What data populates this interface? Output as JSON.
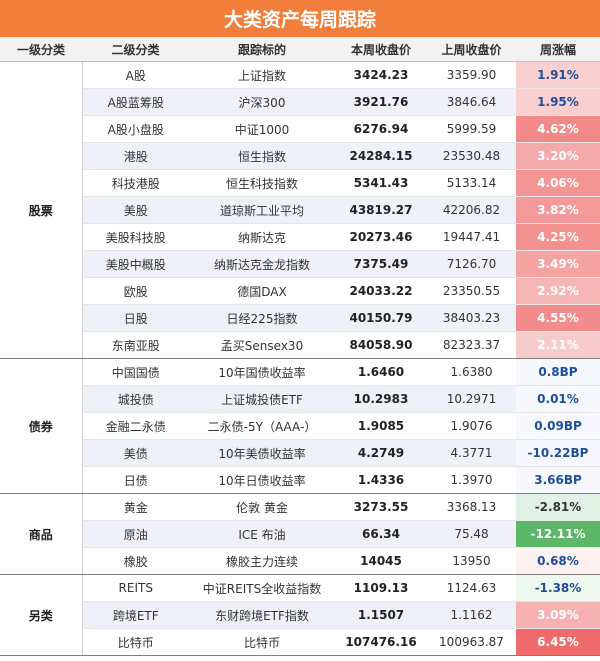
{
  "title": "大类资产每周跟踪",
  "headers": [
    "一级分类",
    "二级分类",
    "跟踪标的",
    "本周收盘价",
    "上周收盘价",
    "周涨幅"
  ],
  "groups": [
    {
      "name": "股票",
      "rows": [
        {
          "sub": "A股",
          "idx": "上证指数",
          "cur": "3424.23",
          "prev": "3359.90",
          "chg": "1.91%",
          "bg": "#f9cfcf",
          "fg": "#1f4e9a"
        },
        {
          "sub": "A股蓝筹股",
          "idx": "沪深300",
          "cur": "3921.76",
          "prev": "3846.64",
          "chg": "1.95%",
          "bg": "#f9cfcf",
          "fg": "#1f4e9a"
        },
        {
          "sub": "A股小盘股",
          "idx": "中证1000",
          "cur": "6276.94",
          "prev": "5999.59",
          "chg": "4.62%",
          "bg": "#f28a8a",
          "fg": "#ffffff"
        },
        {
          "sub": "港股",
          "idx": "恒生指数",
          "cur": "24284.15",
          "prev": "23530.48",
          "chg": "3.20%",
          "bg": "#f4aaaa",
          "fg": "#ffffff"
        },
        {
          "sub": "科技港股",
          "idx": "恒生科技指数",
          "cur": "5341.43",
          "prev": "5133.14",
          "chg": "4.06%",
          "bg": "#f39595",
          "fg": "#ffffff"
        },
        {
          "sub": "美股",
          "idx": "道琼斯工业平均",
          "cur": "43819.27",
          "prev": "42206.82",
          "chg": "3.82%",
          "bg": "#f39999",
          "fg": "#ffffff"
        },
        {
          "sub": "美股科技股",
          "idx": "纳斯达克",
          "cur": "20273.46",
          "prev": "19447.41",
          "chg": "4.25%",
          "bg": "#f39191",
          "fg": "#ffffff"
        },
        {
          "sub": "美股中概股",
          "idx": "纳斯达克金龙指数",
          "cur": "7375.49",
          "prev": "7126.70",
          "chg": "3.49%",
          "bg": "#f4a2a2",
          "fg": "#ffffff"
        },
        {
          "sub": "欧股",
          "idx": "德国DAX",
          "cur": "24033.22",
          "prev": "23350.55",
          "chg": "2.92%",
          "bg": "#f6b6b6",
          "fg": "#ffffff"
        },
        {
          "sub": "日股",
          "idx": "日经225指数",
          "cur": "40150.79",
          "prev": "38403.23",
          "chg": "4.55%",
          "bg": "#f28b8b",
          "fg": "#ffffff"
        },
        {
          "sub": "东南亚股",
          "idx": "孟买Sensex30",
          "cur": "84058.90",
          "prev": "82323.37",
          "chg": "2.11%",
          "bg": "#f8cbcb",
          "fg": "#ffffff"
        }
      ]
    },
    {
      "name": "债券",
      "rows": [
        {
          "sub": "中国国债",
          "idx": "10年国债收益率",
          "cur": "1.6460",
          "prev": "1.6380",
          "chg": "0.8BP",
          "bg": "#f6f8fd",
          "fg": "#1f4e9a"
        },
        {
          "sub": "城投债",
          "idx": "上证城投债ETF",
          "cur": "10.2983",
          "prev": "10.2971",
          "chg": "0.01%",
          "bg": "#f6f8fd",
          "fg": "#1f4e9a"
        },
        {
          "sub": "金融二永债",
          "idx": "二永债-5Y（AAA-）",
          "cur": "1.9085",
          "prev": "1.9076",
          "chg": "0.09BP",
          "bg": "#f6f8fd",
          "fg": "#1f4e9a"
        },
        {
          "sub": "美债",
          "idx": "10年美债收益率",
          "cur": "4.2749",
          "prev": "4.3771",
          "chg": "-10.22BP",
          "bg": "#f6f8fd",
          "fg": "#1f4e9a"
        },
        {
          "sub": "日债",
          "idx": "10年日债收益率",
          "cur": "1.4336",
          "prev": "1.3970",
          "chg": "3.66BP",
          "bg": "#f6f8fd",
          "fg": "#1f4e9a"
        }
      ]
    },
    {
      "name": "商品",
      "rows": [
        {
          "sub": "黄金",
          "idx": "伦敦 黄金",
          "cur": "3273.55",
          "prev": "3368.13",
          "chg": "-2.81%",
          "bg": "#e2f1e5",
          "fg": "#333333"
        },
        {
          "sub": "原油",
          "idx": "ICE 布油",
          "cur": "66.34",
          "prev": "75.48",
          "chg": "-12.11%",
          "bg": "#5cb868",
          "fg": "#ffffff"
        },
        {
          "sub": "橡胶",
          "idx": "橡胶主力连续",
          "cur": "14045",
          "prev": "13950",
          "chg": "0.68%",
          "bg": "#fdf2f2",
          "fg": "#1f4e9a"
        }
      ]
    },
    {
      "name": "另类",
      "rows": [
        {
          "sub": "REITS",
          "idx": "中证REITS全收益指数",
          "cur": "1109.13",
          "prev": "1124.63",
          "chg": "-1.38%",
          "bg": "#eef7f0",
          "fg": "#1f4e9a"
        },
        {
          "sub": "跨境ETF",
          "idx": "东财跨境ETF指数",
          "cur": "1.1507",
          "prev": "1.1162",
          "chg": "3.09%",
          "bg": "#f6b2b2",
          "fg": "#ffffff"
        },
        {
          "sub": "比特币",
          "idx": "比特币",
          "cur": "107476.16",
          "prev": "100963.87",
          "chg": "6.45%",
          "bg": "#ef6b6b",
          "fg": "#ffffff"
        }
      ]
    }
  ]
}
